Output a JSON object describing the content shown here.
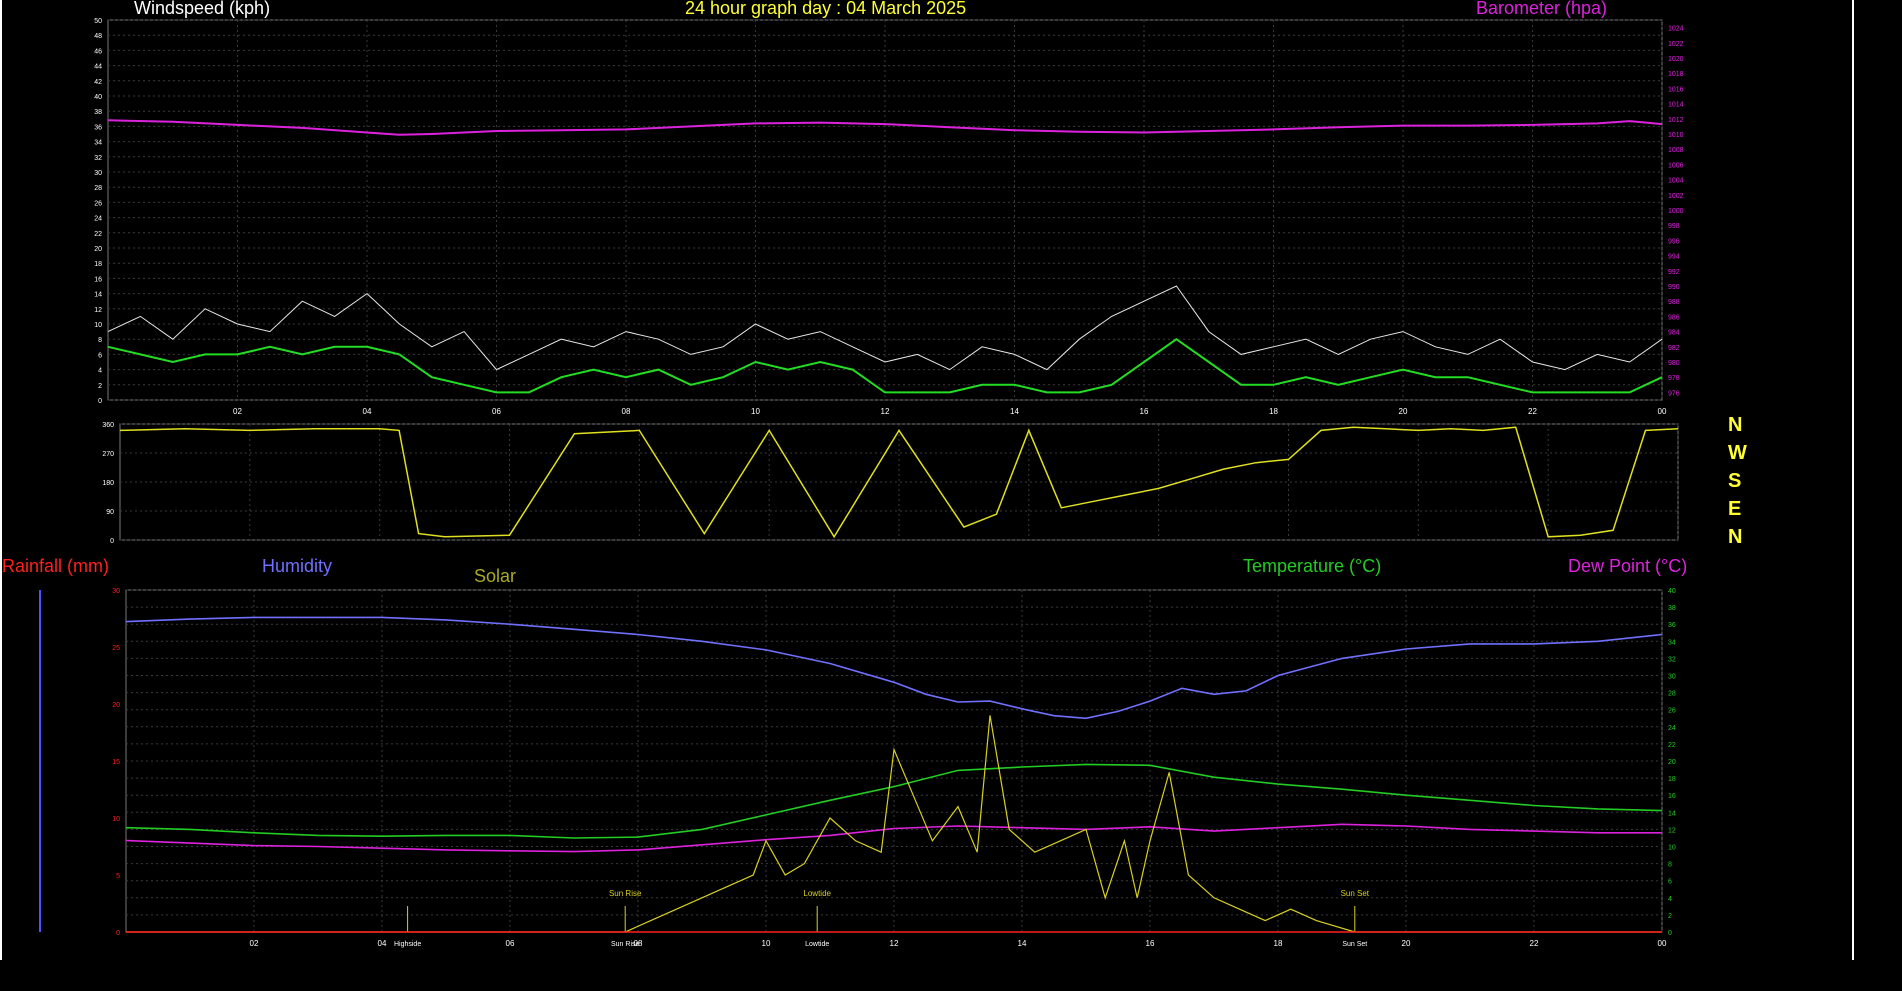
{
  "colors": {
    "background": "#000000",
    "grid": "#3a3a3a",
    "wind": "#e8e8e8",
    "wind_avg": "#22dd22",
    "barometer": "#dd22dd",
    "direction": "#e0e020",
    "humidity": "#7070ff",
    "temperature": "#22cc22",
    "dewpoint": "#dd22dd",
    "solar": "#d8d020",
    "rainfall": "#ff2020",
    "title": "#ffff33",
    "axis_text": "#ffffff"
  },
  "chart_data": [
    {
      "type": "line",
      "id": "wind-baro",
      "title": "24 hour graph day : 04 March 2025",
      "left_label": "Windspeed (kph)",
      "right_label": "Barometer (hpa)",
      "x_ticks": [
        "02",
        "04",
        "06",
        "08",
        "10",
        "12",
        "14",
        "16",
        "18",
        "20",
        "22",
        "00"
      ],
      "xlim": [
        0,
        24
      ],
      "ylim_left": [
        0,
        50
      ],
      "y_ticks_left": [
        0,
        2,
        4,
        6,
        8,
        10,
        12,
        14,
        16,
        18,
        20,
        22,
        24,
        26,
        28,
        30,
        32,
        34,
        36,
        38,
        40,
        42,
        44,
        46,
        48,
        50
      ],
      "ylim_right": [
        975,
        1025
      ],
      "y_ticks_right": [
        976,
        978,
        980,
        982,
        984,
        986,
        988,
        990,
        992,
        994,
        996,
        998,
        1000,
        1002,
        1004,
        1006,
        1008,
        1010,
        1012,
        1014,
        1016,
        1018,
        1020,
        1022,
        1024
      ],
      "series": [
        {
          "key": "barometer",
          "axis": "right",
          "x": [
            0,
            1,
            2,
            3,
            4,
            4.5,
            5,
            6,
            7,
            8,
            9,
            10,
            11,
            12,
            13,
            14,
            15,
            16,
            17,
            18,
            19,
            20,
            21,
            22,
            23,
            23.5,
            24
          ],
          "y": [
            1011.8,
            1011.6,
            1011.2,
            1010.8,
            1010.2,
            1009.9,
            1010.0,
            1010.4,
            1010.5,
            1010.6,
            1011.0,
            1011.4,
            1011.5,
            1011.3,
            1010.9,
            1010.5,
            1010.3,
            1010.2,
            1010.4,
            1010.6,
            1010.9,
            1011.1,
            1011.1,
            1011.2,
            1011.4,
            1011.7,
            1011.3
          ]
        },
        {
          "key": "wind",
          "axis": "left",
          "x": [
            0,
            0.5,
            1,
            1.5,
            2,
            2.5,
            3,
            3.5,
            4,
            4.5,
            5,
            5.5,
            6,
            6.5,
            7,
            7.5,
            8,
            8.5,
            9,
            9.5,
            10,
            10.5,
            11,
            11.5,
            12,
            12.5,
            13,
            13.5,
            14,
            14.5,
            15,
            15.5,
            16,
            16.5,
            17,
            17.5,
            18,
            18.5,
            19,
            19.5,
            20,
            20.5,
            21,
            21.5,
            22,
            22.5,
            23,
            23.5,
            24
          ],
          "y": [
            9,
            11,
            8,
            12,
            10,
            9,
            13,
            11,
            14,
            10,
            7,
            9,
            4,
            6,
            8,
            7,
            9,
            8,
            6,
            7,
            10,
            8,
            9,
            7,
            5,
            6,
            4,
            7,
            6,
            4,
            8,
            11,
            13,
            15,
            9,
            6,
            7,
            8,
            6,
            8,
            9,
            7,
            6,
            8,
            5,
            4,
            6,
            5,
            8
          ]
        },
        {
          "key": "wind_avg",
          "axis": "left",
          "x": [
            0,
            0.5,
            1,
            1.5,
            2,
            2.5,
            3,
            3.5,
            4,
            4.5,
            5,
            5.5,
            6,
            6.5,
            7,
            7.5,
            8,
            8.5,
            9,
            9.5,
            10,
            10.5,
            11,
            11.5,
            12,
            12.5,
            13,
            13.5,
            14,
            14.5,
            15,
            15.5,
            16,
            16.5,
            17,
            17.5,
            18,
            18.5,
            19,
            19.5,
            20,
            20.5,
            21,
            21.5,
            22,
            22.5,
            23,
            23.5,
            24
          ],
          "y": [
            7,
            6,
            5,
            6,
            6,
            7,
            6,
            7,
            7,
            6,
            3,
            2,
            1,
            1,
            3,
            4,
            3,
            4,
            2,
            3,
            5,
            4,
            5,
            4,
            1,
            1,
            1,
            2,
            2,
            1,
            1,
            2,
            5,
            8,
            5,
            2,
            2,
            3,
            2,
            3,
            4,
            3,
            3,
            2,
            1,
            1,
            1,
            1,
            3
          ]
        }
      ]
    },
    {
      "type": "line",
      "id": "wind-direction",
      "xlim": [
        0,
        24
      ],
      "ylim": [
        0,
        360
      ],
      "y_ticks": [
        0,
        90,
        180,
        270,
        360
      ],
      "compass_labels": [
        "N",
        "W",
        "S",
        "E",
        "N"
      ],
      "series": [
        {
          "key": "direction",
          "x": [
            0,
            1,
            2,
            3,
            4,
            4.3,
            4.6,
            5,
            6,
            7,
            8,
            9,
            10,
            11,
            12,
            13,
            13.5,
            14,
            14.5,
            15,
            15.5,
            16,
            16.5,
            17,
            17.5,
            18,
            18.5,
            19,
            19.5,
            20,
            20.5,
            21,
            21.5,
            22,
            22.5,
            23,
            23.5,
            24
          ],
          "y": [
            340,
            345,
            340,
            345,
            345,
            340,
            20,
            10,
            15,
            330,
            340,
            20,
            340,
            10,
            340,
            40,
            80,
            340,
            100,
            120,
            140,
            160,
            190,
            220,
            240,
            250,
            340,
            350,
            345,
            340,
            345,
            340,
            350,
            10,
            15,
            30,
            340,
            345
          ]
        }
      ]
    },
    {
      "type": "line",
      "id": "temp-hum-solar",
      "left_label": "Rainfall (mm)",
      "humidity_label": "Humidity",
      "solar_label": "Solar",
      "right_label": "Temperature (°C)",
      "dew_label": "Dew Point (°C)",
      "x_ticks": [
        "02",
        "04",
        "06",
        "08",
        "10",
        "12",
        "14",
        "16",
        "18",
        "20",
        "22",
        "00"
      ],
      "xlim": [
        0,
        24
      ],
      "ylim_left": [
        0,
        30
      ],
      "y_ticks_left": [
        0,
        5,
        10,
        15,
        20,
        25,
        30
      ],
      "ylim_right": [
        0,
        40
      ],
      "y_ticks_right": [
        0,
        2,
        4,
        6,
        8,
        10,
        12,
        14,
        16,
        18,
        20,
        22,
        24,
        26,
        28,
        30,
        32,
        34,
        36,
        38,
        40
      ],
      "events": [
        {
          "x": 4.4,
          "top": "",
          "bottom": "Highside"
        },
        {
          "x": 7.8,
          "top": "Sun Rise",
          "bottom": "Sun Rise"
        },
        {
          "x": 10.8,
          "top": "Lowtide",
          "bottom": "Lowtide"
        },
        {
          "x": 19.2,
          "top": "Sun Set",
          "bottom": "Sun Set"
        }
      ],
      "series": [
        {
          "key": "humidity",
          "axis": "right",
          "x": [
            0,
            1,
            2,
            3,
            4,
            5,
            6,
            7,
            8,
            9,
            10,
            11,
            12,
            12.5,
            13,
            13.5,
            14,
            14.5,
            15,
            15.5,
            16,
            16.5,
            17,
            17.5,
            18,
            19,
            20,
            21,
            22,
            23,
            24
          ],
          "y": [
            36.3,
            36.6,
            36.8,
            36.8,
            36.8,
            36.5,
            36.0,
            35.4,
            34.8,
            34.0,
            33.0,
            31.4,
            29.2,
            27.8,
            26.9,
            27.0,
            26.1,
            25.3,
            25.0,
            25.8,
            27.0,
            28.5,
            27.8,
            28.2,
            30.0,
            32.0,
            33.1,
            33.7,
            33.7,
            34.0,
            34.8
          ]
        },
        {
          "key": "temperature",
          "axis": "right",
          "x": [
            0,
            1,
            2,
            3,
            4,
            5,
            6,
            7,
            8,
            9,
            10,
            11,
            12,
            13,
            14,
            15,
            16,
            17,
            18,
            19,
            20,
            21,
            22,
            23,
            24
          ],
          "y": [
            12.2,
            12.0,
            11.6,
            11.3,
            11.2,
            11.3,
            11.3,
            11.0,
            11.1,
            12.0,
            13.7,
            15.4,
            17.0,
            18.9,
            19.3,
            19.6,
            19.5,
            18.1,
            17.3,
            16.7,
            16.0,
            15.4,
            14.8,
            14.4,
            14.2
          ]
        },
        {
          "key": "dewpoint",
          "axis": "right",
          "x": [
            0,
            1,
            2,
            3,
            4,
            5,
            6,
            7,
            8,
            9,
            10,
            11,
            12,
            13,
            14,
            15,
            16,
            17,
            18,
            19,
            20,
            21,
            22,
            23,
            24
          ],
          "y": [
            10.7,
            10.4,
            10.1,
            10.0,
            9.8,
            9.6,
            9.5,
            9.4,
            9.6,
            10.2,
            10.8,
            11.3,
            12.1,
            12.4,
            12.2,
            12.0,
            12.3,
            11.8,
            12.2,
            12.6,
            12.4,
            12.0,
            11.8,
            11.6,
            11.6
          ]
        },
        {
          "key": "solar",
          "axis": "left",
          "x": [
            0,
            7.8,
            8.2,
            8.6,
            9,
            9.4,
            9.8,
            10,
            10.3,
            10.6,
            11,
            11.4,
            11.8,
            12,
            12.3,
            12.6,
            13,
            13.3,
            13.5,
            13.8,
            14.2,
            14.6,
            15,
            15.3,
            15.6,
            15.8,
            16,
            16.3,
            16.6,
            17,
            17.4,
            17.8,
            18.2,
            18.6,
            19.2,
            24
          ],
          "y": [
            0,
            0,
            1,
            2,
            3,
            4,
            5,
            8,
            5,
            6,
            10,
            8,
            7,
            16,
            12,
            8,
            11,
            7,
            19,
            9,
            7,
            8,
            9,
            3,
            8,
            3,
            8,
            14,
            5,
            3,
            2,
            1,
            2,
            1,
            0,
            0
          ]
        },
        {
          "key": "rainfall",
          "axis": "left",
          "x": [
            0,
            24
          ],
          "y": [
            0,
            0
          ]
        }
      ]
    }
  ]
}
